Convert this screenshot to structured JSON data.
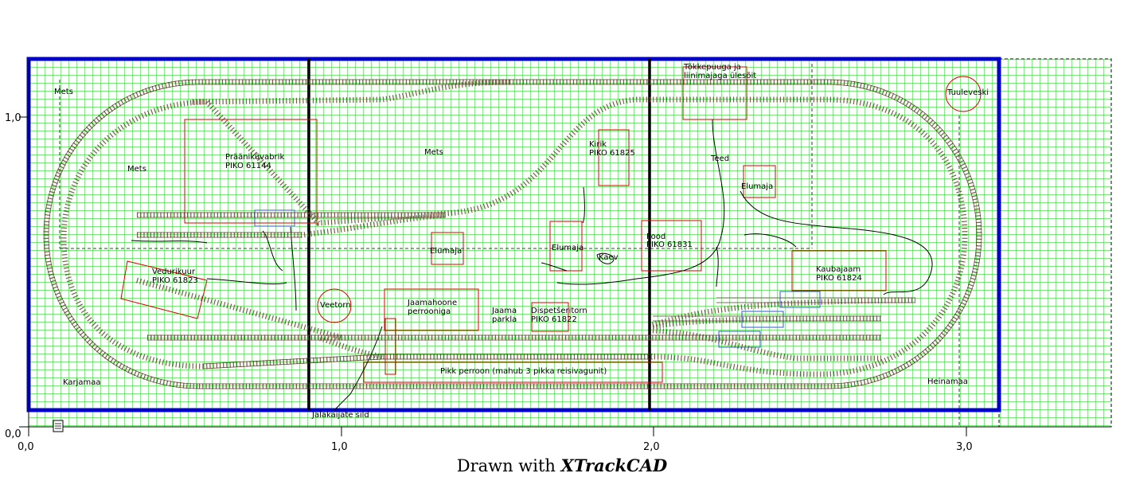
{
  "footer": {
    "prefix": "Drawn with ",
    "brand": "XTrackCAD"
  },
  "axes": {
    "x_ticks": [
      "0,0",
      "1,0",
      "2,0",
      "3,0"
    ],
    "y_ticks": [
      "1,0",
      "0,0"
    ]
  },
  "labels": {
    "mets_top": "Mets",
    "mets_left": "Mets",
    "mets_center": "Mets",
    "praani": "Prääniküvabrik",
    "praani_model": "PIKO 61144",
    "tokke1": "Tõkkepuuga ja",
    "tokke2": "liinimajaga ülesõit",
    "tuuleveski": "Tuuleveski",
    "kirik": "Kirik",
    "kirik_model": "PIKO 61825",
    "teed": "Teed",
    "elumaja_right": "Elumaja",
    "elumaja_left": "Elumaja",
    "elumaja_mid": "Elumaja",
    "pood": "Pood",
    "pood_model": "PIKO 61831",
    "kaev": "Kaev",
    "kaubajaam": "Kaubajaam",
    "kaubajaam_model": "PIKO 61824",
    "vedurikuur": "Vedurikuur",
    "vedurikuur_model": "PIKO 61823",
    "veetorn": "Veetorn",
    "jaamahoone1": "Jaamahoone",
    "jaamahoone2": "perrooniga",
    "jaama1": "Jaama",
    "jaama2": "parkla",
    "dispetser": "Dispetšeritorn",
    "dispetser_model": "PIKO 61822",
    "perroon": "Pikk perroon (mahub 3 pikka reisivagunit)",
    "karjamaa": "Karjamaa",
    "heinamaa": "Heinamaa",
    "sild": "Jalakäijate sild"
  },
  "colors": {
    "grid": "#00cc00",
    "border": "#0000cc",
    "building": "#dd0000",
    "track_rail": "#6b4a3a",
    "divider": "#000000"
  },
  "icons": {
    "corner": "page-icon"
  }
}
